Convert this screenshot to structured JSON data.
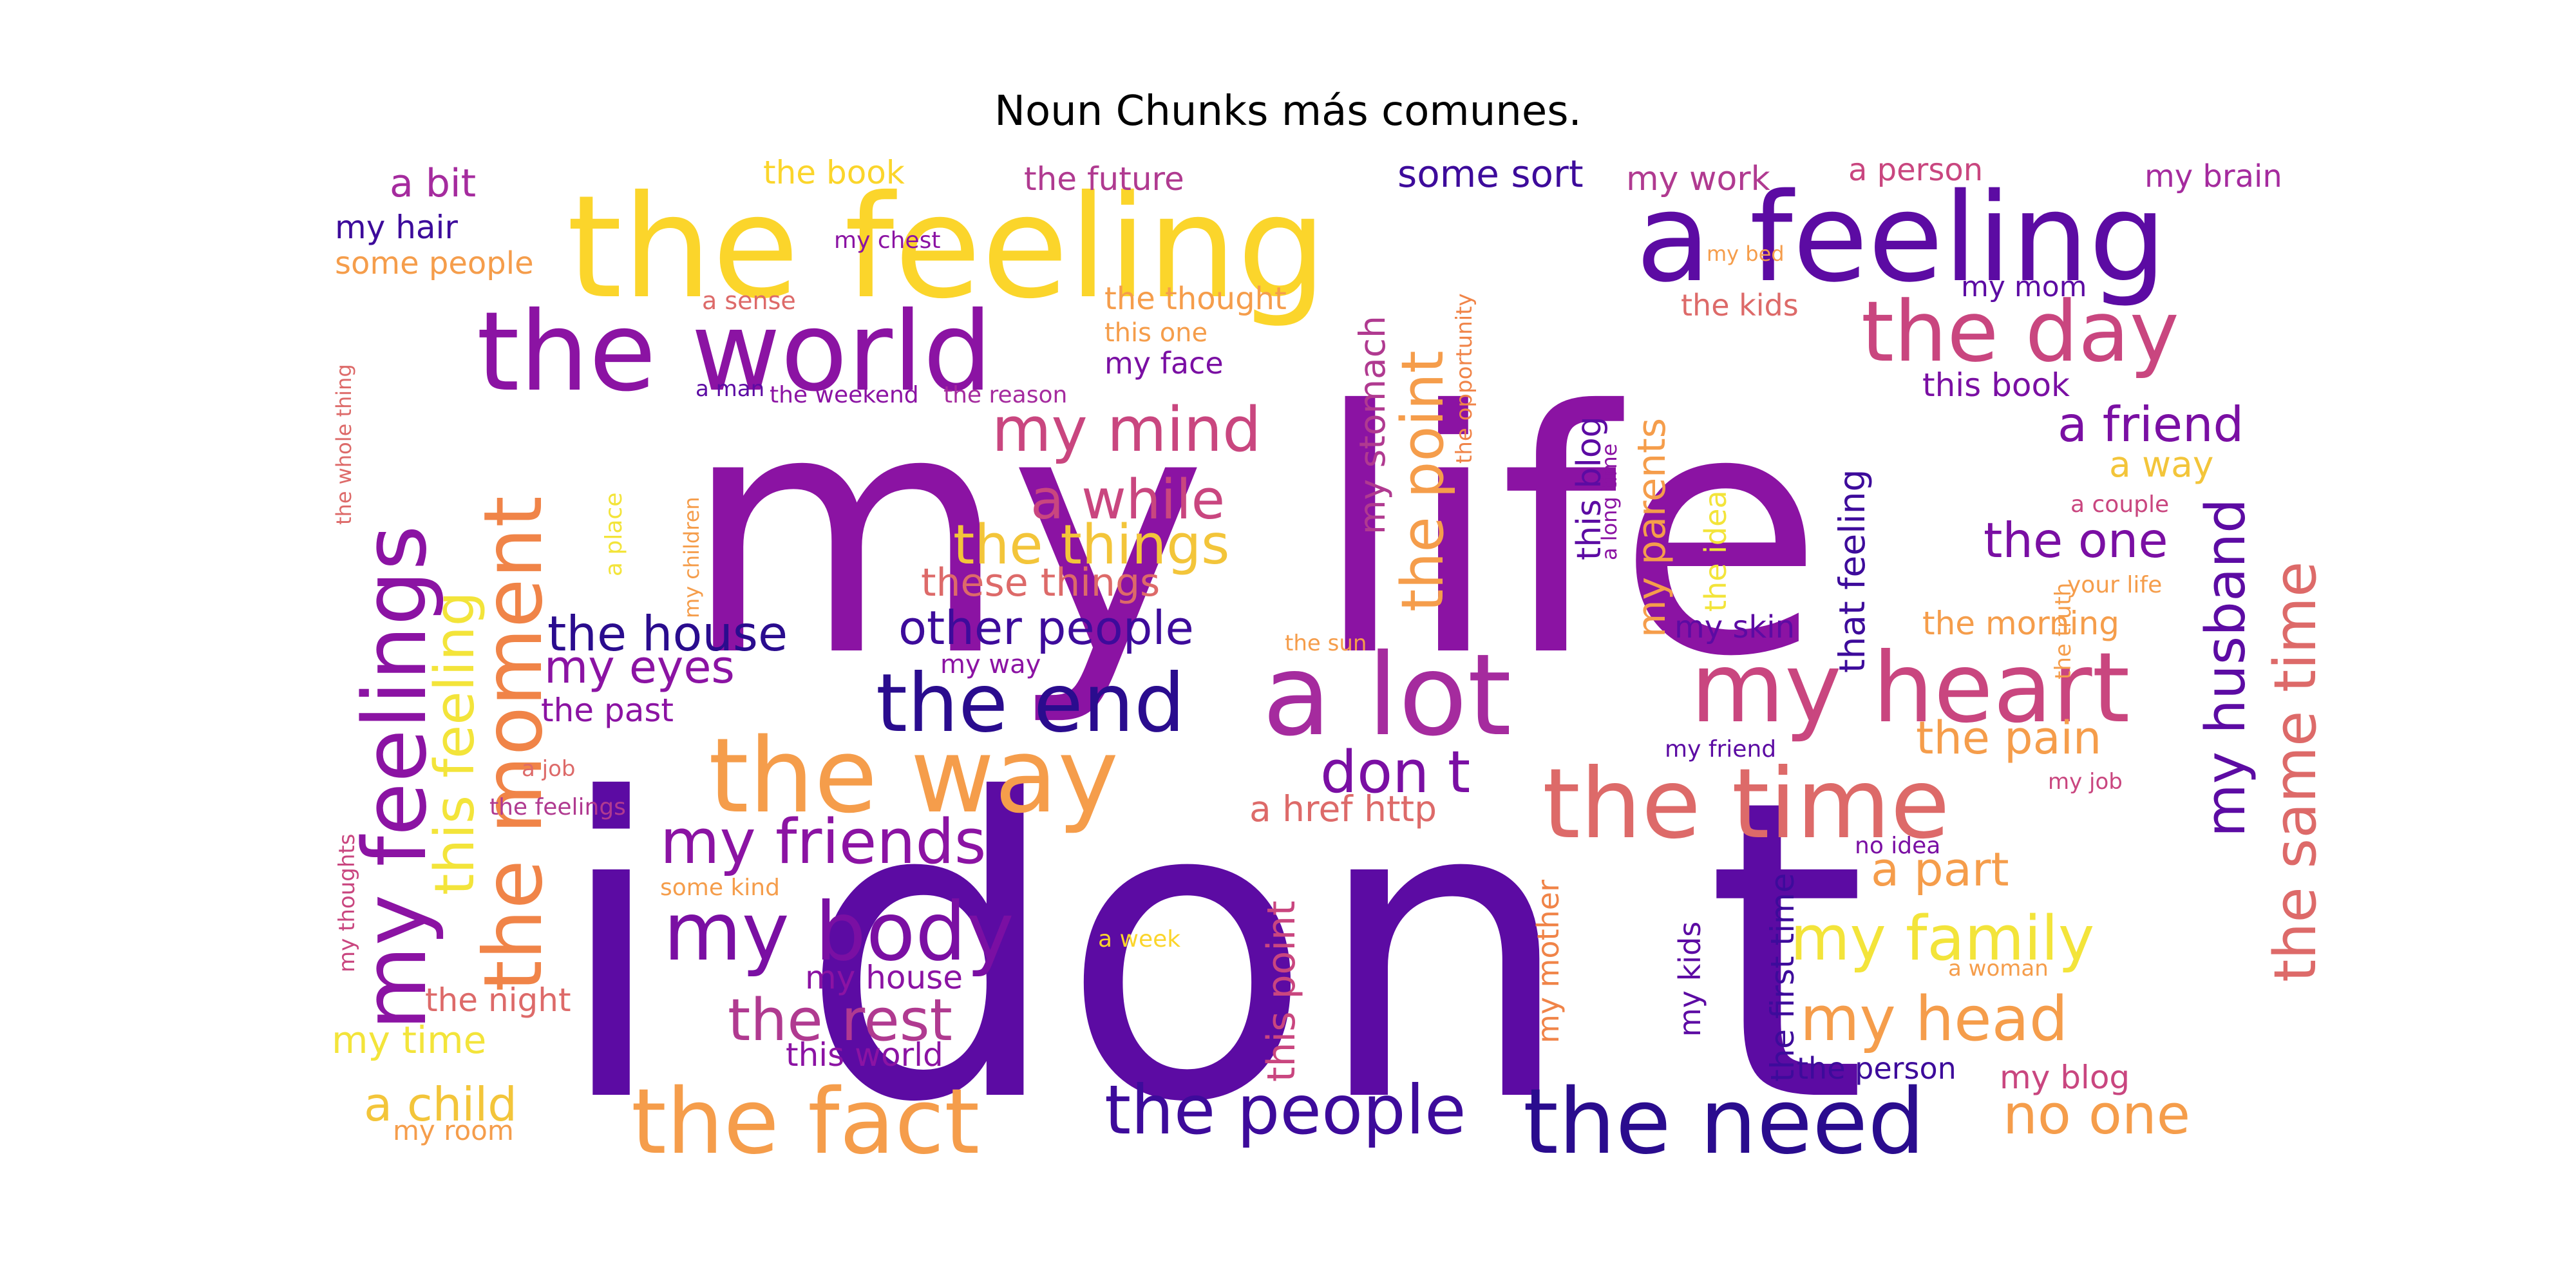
{
  "title": "Noun Chunks más comunes.",
  "palette": {
    "deep_purple": "#5c0ba3",
    "purple": "#8b13a3",
    "magenta": "#a52b9e",
    "pink": "#c9467f",
    "salmon": "#dd6a69",
    "orange": "#f59d4b",
    "yellow": "#fbd52b",
    "pale_yellow": "#f3e43a",
    "indigo": "#2a0c8e"
  },
  "words": [
    {
      "text": "my life",
      "color": "#8b13a3"
    },
    {
      "text": "i don t",
      "color": "#5c0ba3"
    },
    {
      "text": "the feeling",
      "color": "#fbd52b"
    },
    {
      "text": "a feeling",
      "color": "#5c0ba3"
    },
    {
      "text": "the world",
      "color": "#8b13a3"
    },
    {
      "text": "the way",
      "color": "#f59d4b"
    },
    {
      "text": "a lot",
      "color": "#a52b9e"
    },
    {
      "text": "my heart",
      "color": "#c9467f"
    },
    {
      "text": "the time",
      "color": "#dd6a69"
    },
    {
      "text": "the day",
      "color": "#c9467f"
    },
    {
      "text": "the end",
      "color": "#2a0c8e"
    },
    {
      "text": "my feelings",
      "color": "#8b13a3"
    },
    {
      "text": "the moment",
      "color": "#f08448"
    },
    {
      "text": "the fact",
      "color": "#f59d4b"
    },
    {
      "text": "the need",
      "color": "#2a0c8e"
    },
    {
      "text": "my body",
      "color": "#7a0fa3"
    },
    {
      "text": "the people",
      "color": "#3d0b9b"
    },
    {
      "text": "my mind",
      "color": "#c9467f"
    },
    {
      "text": "a while",
      "color": "#c9467f"
    },
    {
      "text": "the things",
      "color": "#f3c53a"
    },
    {
      "text": "my friends",
      "color": "#8b13a3"
    },
    {
      "text": "don t",
      "color": "#7a0fa3"
    },
    {
      "text": "the point",
      "color": "#f59d4b"
    },
    {
      "text": "my family",
      "color": "#f3e43a"
    },
    {
      "text": "my head",
      "color": "#f59d4b"
    },
    {
      "text": "the rest",
      "color": "#b03a90"
    },
    {
      "text": "the same time",
      "color": "#dd6a69"
    },
    {
      "text": "my husband",
      "color": "#5c0ba3"
    },
    {
      "text": "this feeling",
      "color": "#f3e43a"
    },
    {
      "text": "a friend",
      "color": "#7a0fa3"
    },
    {
      "text": "the house",
      "color": "#2a0c8e"
    },
    {
      "text": "other people",
      "color": "#3d0b9b"
    },
    {
      "text": "my eyes",
      "color": "#8b13a3"
    },
    {
      "text": "the one",
      "color": "#7a0fa3"
    },
    {
      "text": "a part",
      "color": "#f59d4b"
    },
    {
      "text": "no one",
      "color": "#f59d4b"
    },
    {
      "text": "the pain",
      "color": "#f59d4b"
    },
    {
      "text": "a child",
      "color": "#f3c53a"
    },
    {
      "text": "these things",
      "color": "#dd6a69"
    },
    {
      "text": "my parents",
      "color": "#f59d4b"
    },
    {
      "text": "a href http",
      "color": "#dd6a69"
    },
    {
      "text": "this point",
      "color": "#c9467f"
    },
    {
      "text": "my stomach",
      "color": "#b03a90"
    },
    {
      "text": "a way",
      "color": "#f3c53a"
    },
    {
      "text": "this book",
      "color": "#7a0fa3"
    },
    {
      "text": "that feeling",
      "color": "#3d0b9b"
    },
    {
      "text": "a bit",
      "color": "#a52b9e"
    },
    {
      "text": "the book",
      "color": "#fbd52b"
    },
    {
      "text": "the future",
      "color": "#b03a90"
    },
    {
      "text": "some sort",
      "color": "#3d0b9b"
    },
    {
      "text": "my work",
      "color": "#b03a90"
    },
    {
      "text": "a person",
      "color": "#c9467f"
    },
    {
      "text": "my brain",
      "color": "#a52b9e"
    },
    {
      "text": "my hair",
      "color": "#3d0b9b"
    },
    {
      "text": "some people",
      "color": "#f59d4b"
    },
    {
      "text": "my chest",
      "color": "#8b13a3"
    },
    {
      "text": "my bed",
      "color": "#f59d4b"
    },
    {
      "text": "a sense",
      "color": "#dd6a69"
    },
    {
      "text": "the thought",
      "color": "#f59d4b"
    },
    {
      "text": "this one",
      "color": "#f59d4b"
    },
    {
      "text": "my face",
      "color": "#7a0fa3"
    },
    {
      "text": "the kids",
      "color": "#dd6a69"
    },
    {
      "text": "my mom",
      "color": "#5c0ba3"
    },
    {
      "text": "a man",
      "color": "#5c0ba3"
    },
    {
      "text": "the weekend",
      "color": "#8b13a3"
    },
    {
      "text": "the reason",
      "color": "#a52b9e"
    },
    {
      "text": "the opportunity",
      "color": "#f08448"
    },
    {
      "text": "this blog",
      "color": "#5c0ba3"
    },
    {
      "text": "a long time",
      "color": "#8b13a3"
    },
    {
      "text": "the idea",
      "color": "#f3e43a"
    },
    {
      "text": "a couple",
      "color": "#c9467f"
    },
    {
      "text": "your life",
      "color": "#f59d4b"
    },
    {
      "text": "the whole thing",
      "color": "#dd6a69"
    },
    {
      "text": "a place",
      "color": "#f3e43a"
    },
    {
      "text": "my children",
      "color": "#f59d4b"
    },
    {
      "text": "the sun",
      "color": "#f59d4b"
    },
    {
      "text": "the morning",
      "color": "#f59d4b"
    },
    {
      "text": "the truth",
      "color": "#f59d4b"
    },
    {
      "text": "my skin",
      "color": "#5c0ba3"
    },
    {
      "text": "my way",
      "color": "#8b13a3"
    },
    {
      "text": "the past",
      "color": "#8b13a3"
    },
    {
      "text": "a job",
      "color": "#dd6a69"
    },
    {
      "text": "the feelings",
      "color": "#b03a90"
    },
    {
      "text": "my friend",
      "color": "#5c0ba3"
    },
    {
      "text": "my job",
      "color": "#c9467f"
    },
    {
      "text": "no idea",
      "color": "#7a0fa3"
    },
    {
      "text": "the first time",
      "color": "#3d0b9b"
    },
    {
      "text": "my kids",
      "color": "#5c0ba3"
    },
    {
      "text": "my mother",
      "color": "#f08448"
    },
    {
      "text": "a woman",
      "color": "#f59d4b"
    },
    {
      "text": "my thoughts",
      "color": "#c9467f"
    },
    {
      "text": "some kind",
      "color": "#f59d4b"
    },
    {
      "text": "a week",
      "color": "#fbd52b"
    },
    {
      "text": "my house",
      "color": "#8b13a3"
    },
    {
      "text": "the night",
      "color": "#dd6a69"
    },
    {
      "text": "this world",
      "color": "#8b13a3"
    },
    {
      "text": "my time",
      "color": "#f3e43a"
    },
    {
      "text": "my room",
      "color": "#f59d4b"
    },
    {
      "text": "the person",
      "color": "#3d0b9b"
    },
    {
      "text": "my blog",
      "color": "#c9467f"
    }
  ]
}
